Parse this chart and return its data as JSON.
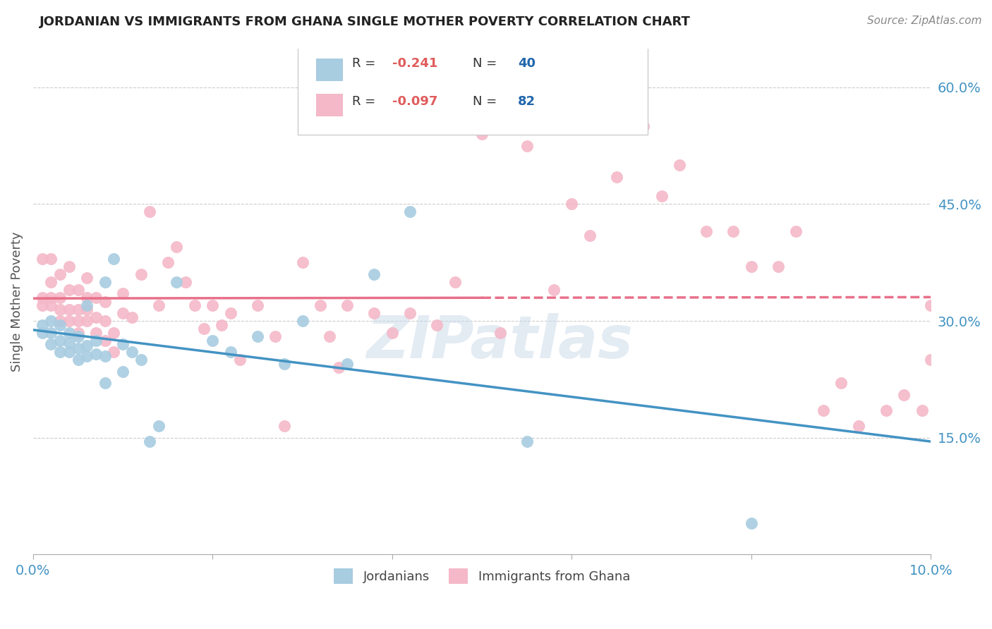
{
  "title": "JORDANIAN VS IMMIGRANTS FROM GHANA SINGLE MOTHER POVERTY CORRELATION CHART",
  "source": "Source: ZipAtlas.com",
  "ylabel": "Single Mother Poverty",
  "xlim": [
    0.0,
    0.1
  ],
  "ylim": [
    0.0,
    0.65
  ],
  "jordanian_color": "#a8cce0",
  "ghana_color": "#f4b8c8",
  "jordanian_line_color": "#4393c3",
  "ghana_line_color": "#e8708a",
  "jordanian_R": -0.241,
  "jordanian_N": 40,
  "ghana_R": -0.097,
  "ghana_N": 82,
  "r_text_color": "#333333",
  "n_text_color": "#2166ac",
  "rval_color": "#e05c5c",
  "nval_color": "#2166ac",
  "watermark": "ZIPatlas",
  "jordanian_x": [
    0.001,
    0.001,
    0.002,
    0.002,
    0.002,
    0.003,
    0.003,
    0.003,
    0.004,
    0.004,
    0.004,
    0.005,
    0.005,
    0.005,
    0.006,
    0.006,
    0.006,
    0.007,
    0.007,
    0.008,
    0.008,
    0.008,
    0.009,
    0.01,
    0.01,
    0.011,
    0.012,
    0.013,
    0.014,
    0.016,
    0.02,
    0.022,
    0.025,
    0.028,
    0.03,
    0.035,
    0.038,
    0.042,
    0.055,
    0.08
  ],
  "jordanian_y": [
    0.285,
    0.295,
    0.27,
    0.285,
    0.3,
    0.26,
    0.275,
    0.295,
    0.26,
    0.272,
    0.285,
    0.25,
    0.265,
    0.28,
    0.255,
    0.268,
    0.32,
    0.258,
    0.275,
    0.22,
    0.255,
    0.35,
    0.38,
    0.235,
    0.27,
    0.26,
    0.25,
    0.145,
    0.165,
    0.35,
    0.275,
    0.26,
    0.28,
    0.245,
    0.3,
    0.245,
    0.36,
    0.44,
    0.145,
    0.04
  ],
  "ghana_x": [
    0.001,
    0.001,
    0.001,
    0.002,
    0.002,
    0.002,
    0.002,
    0.003,
    0.003,
    0.003,
    0.003,
    0.004,
    0.004,
    0.004,
    0.004,
    0.005,
    0.005,
    0.005,
    0.005,
    0.006,
    0.006,
    0.006,
    0.006,
    0.007,
    0.007,
    0.007,
    0.008,
    0.008,
    0.008,
    0.009,
    0.009,
    0.01,
    0.01,
    0.011,
    0.012,
    0.013,
    0.014,
    0.015,
    0.016,
    0.017,
    0.018,
    0.019,
    0.02,
    0.021,
    0.022,
    0.023,
    0.025,
    0.027,
    0.028,
    0.03,
    0.032,
    0.033,
    0.034,
    0.035,
    0.038,
    0.04,
    0.042,
    0.045,
    0.047,
    0.05,
    0.052,
    0.055,
    0.058,
    0.06,
    0.062,
    0.065,
    0.068,
    0.07,
    0.072,
    0.075,
    0.078,
    0.08,
    0.083,
    0.085,
    0.088,
    0.09,
    0.092,
    0.095,
    0.097,
    0.099,
    0.1,
    0.1
  ],
  "ghana_y": [
    0.33,
    0.32,
    0.38,
    0.32,
    0.33,
    0.35,
    0.38,
    0.3,
    0.315,
    0.33,
    0.36,
    0.3,
    0.315,
    0.34,
    0.37,
    0.285,
    0.3,
    0.315,
    0.34,
    0.3,
    0.315,
    0.33,
    0.355,
    0.285,
    0.305,
    0.33,
    0.275,
    0.3,
    0.325,
    0.26,
    0.285,
    0.31,
    0.335,
    0.305,
    0.36,
    0.44,
    0.32,
    0.375,
    0.395,
    0.35,
    0.32,
    0.29,
    0.32,
    0.295,
    0.31,
    0.25,
    0.32,
    0.28,
    0.165,
    0.375,
    0.32,
    0.28,
    0.24,
    0.32,
    0.31,
    0.285,
    0.31,
    0.295,
    0.35,
    0.54,
    0.285,
    0.525,
    0.34,
    0.45,
    0.41,
    0.485,
    0.55,
    0.46,
    0.5,
    0.415,
    0.415,
    0.37,
    0.37,
    0.415,
    0.185,
    0.22,
    0.165,
    0.185,
    0.205,
    0.185,
    0.32,
    0.25
  ]
}
